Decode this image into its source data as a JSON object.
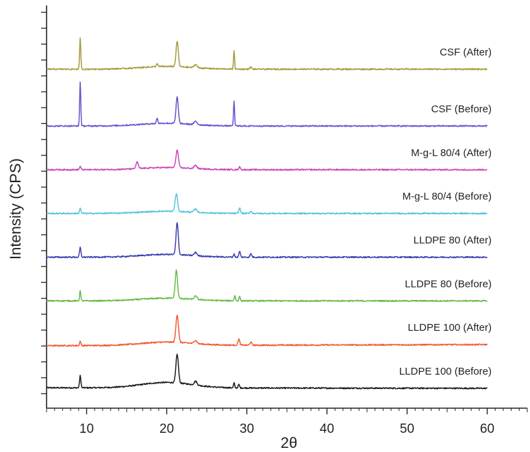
{
  "chart_data": {
    "type": "line",
    "xlabel": "2θ",
    "ylabel": "Intensity (CPS)",
    "xlim": [
      5,
      65
    ],
    "xticks": [
      10,
      20,
      30,
      40,
      50,
      60
    ],
    "grid": false,
    "legend": "inline labels at right of each trace",
    "y_offset_step": 1,
    "series": [
      {
        "name": "LLDPE 100 (Before)",
        "color": "#1a1a1a",
        "base": 0,
        "slope": 0.05,
        "hump": 0.5,
        "peaks": [
          [
            9.2,
            1.1,
            0.12
          ],
          [
            21.3,
            2.6,
            0.22
          ],
          [
            23.6,
            0.35,
            0.25
          ],
          [
            28.4,
            0.45,
            0.1
          ],
          [
            29.0,
            0.3,
            0.12
          ]
        ]
      },
      {
        "name": "LLDPE 100 (After)",
        "color": "#f05a32",
        "base": 1,
        "slope": -0.1,
        "hump": 0.3,
        "peaks": [
          [
            9.2,
            0.4,
            0.12
          ],
          [
            21.3,
            2.5,
            0.22
          ],
          [
            23.6,
            0.3,
            0.25
          ],
          [
            29.0,
            0.55,
            0.15
          ],
          [
            30.5,
            0.3,
            0.15
          ]
        ]
      },
      {
        "name": "LLDPE 80 (Before)",
        "color": "#66bb44",
        "base": 2,
        "slope": 0.0,
        "hump": 0.25,
        "peaks": [
          [
            9.2,
            1.0,
            0.1
          ],
          [
            21.2,
            2.6,
            0.2
          ],
          [
            23.6,
            0.3,
            0.25
          ],
          [
            28.5,
            0.5,
            0.1
          ],
          [
            29.1,
            0.4,
            0.12
          ]
        ]
      },
      {
        "name": "LLDPE 80 (After)",
        "color": "#3a3fb0",
        "base": 3,
        "slope": 0.0,
        "hump": 0.25,
        "peaks": [
          [
            9.2,
            0.9,
            0.12
          ],
          [
            21.3,
            2.9,
            0.2
          ],
          [
            23.6,
            0.3,
            0.25
          ],
          [
            28.4,
            0.3,
            0.1
          ],
          [
            29.1,
            0.55,
            0.12
          ],
          [
            30.5,
            0.3,
            0.15
          ]
        ]
      },
      {
        "name": "M-g-L 80/4 (Before)",
        "color": "#55c3dd",
        "base": 4,
        "slope": 0.0,
        "hump": 0.2,
        "peaks": [
          [
            9.2,
            0.5,
            0.12
          ],
          [
            21.2,
            1.6,
            0.22
          ],
          [
            23.6,
            0.3,
            0.25
          ],
          [
            29.1,
            0.5,
            0.15
          ],
          [
            30.5,
            0.2,
            0.15
          ]
        ]
      },
      {
        "name": "M-g-L 80/4 (After)",
        "color": "#cc44bb",
        "base": 5,
        "slope": 0.0,
        "hump": 0.2,
        "peaks": [
          [
            9.2,
            0.3,
            0.12
          ],
          [
            16.3,
            0.6,
            0.2
          ],
          [
            21.3,
            1.6,
            0.22
          ],
          [
            23.6,
            0.3,
            0.25
          ],
          [
            29.1,
            0.25,
            0.15
          ]
        ]
      },
      {
        "name": "CSF (Before)",
        "color": "#6a4fd0",
        "base": 6,
        "slope": 0.0,
        "hump": 0.25,
        "peaks": [
          [
            9.2,
            4.0,
            0.1
          ],
          [
            18.8,
            0.5,
            0.12
          ],
          [
            21.3,
            2.4,
            0.2
          ],
          [
            23.6,
            0.3,
            0.25
          ],
          [
            28.4,
            2.3,
            0.09
          ]
        ]
      },
      {
        "name": "CSF (After)",
        "color": "#a59a3c",
        "base": 7.3,
        "slope": 0.0,
        "hump": 0.25,
        "peaks": [
          [
            9.2,
            2.9,
            0.1
          ],
          [
            18.8,
            0.3,
            0.12
          ],
          [
            21.3,
            2.3,
            0.2
          ],
          [
            23.6,
            0.3,
            0.25
          ],
          [
            28.4,
            1.7,
            0.09
          ],
          [
            30.5,
            0.2,
            0.15
          ]
        ]
      }
    ]
  }
}
